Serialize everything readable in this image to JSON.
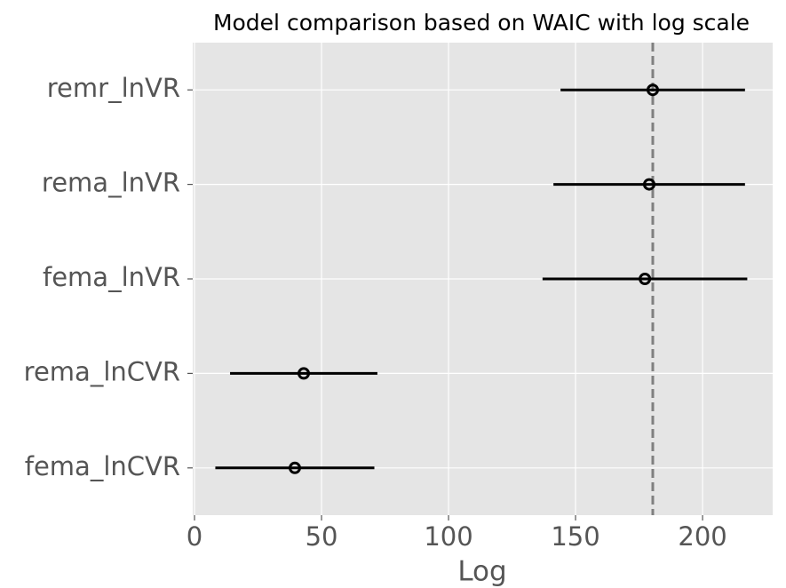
{
  "chart_data": {
    "type": "errorbar",
    "title": "Model comparison based on WAIC with log scale",
    "x_label": "Log",
    "categories": [
      "remr_lnVR",
      "rema_lnVR",
      "fema_lnVR",
      "rema_lnCVR",
      "fema_lnCVR"
    ],
    "values": [
      180.4,
      179.0,
      177.3,
      43.0,
      39.5
    ],
    "errors": [
      36.3,
      37.7,
      40.3,
      29.0,
      31.3
    ],
    "color": "#000000",
    "reference_line": 180.4,
    "reference_color": "#808080",
    "xlim": [
      -0.7,
      227.6
    ],
    "xticks": [
      0,
      50,
      100,
      150,
      200
    ],
    "grid": true
  }
}
